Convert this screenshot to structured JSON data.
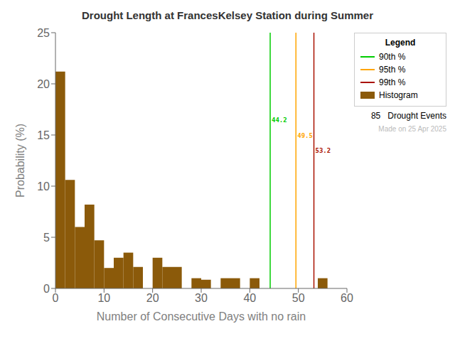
{
  "chart_data": {
    "type": "histogram",
    "title": "Drought Length at FrancesKelsey Station during Summer",
    "x_label": "Number of Consecutive Days with no rain",
    "y_label": "Probability (%)",
    "name": "Histogram",
    "color": "#8B5A0A",
    "bins": [
      0,
      2,
      4,
      6,
      8,
      10,
      12,
      14,
      16,
      18,
      20,
      22,
      24,
      26,
      28,
      30,
      32,
      34,
      36,
      38,
      40,
      42,
      44,
      46,
      48,
      50,
      52,
      54,
      56,
      58,
      60
    ],
    "values": [
      21.2,
      10.6,
      6.0,
      8.2,
      4.7,
      2.0,
      3.0,
      3.5,
      2.1,
      0.0,
      3.0,
      2.1,
      2.1,
      0.0,
      1.0,
      0.85,
      0.0,
      1.0,
      1.0,
      0.0,
      1.0,
      0.0,
      0.0,
      0.0,
      0.0,
      0.0,
      0.0,
      1.0,
      0.0,
      0.0
    ],
    "xlim": [
      0,
      60
    ],
    "ylim": [
      0,
      25
    ],
    "xticks": [
      0,
      10,
      20,
      30,
      40,
      50,
      60
    ],
    "yticks": [
      0,
      5,
      10,
      15,
      20,
      25
    ],
    "grid": false,
    "legend": "upper right",
    "legend_title": "Legend",
    "lines": [
      {
        "name": "90th %",
        "x": 44.2,
        "label": "44.2",
        "color": "#00CC00"
      },
      {
        "name": "95th %",
        "x": 49.5,
        "label": "49.5",
        "color": "#FFA500"
      },
      {
        "name": "99th %",
        "x": 53.2,
        "label": "53.2",
        "color": "#AA1100"
      }
    ],
    "annotations": [
      {
        "text": "85   Drought Events",
        "color": "#000000"
      },
      {
        "text": "Made on 25 Apr 2025",
        "color": "#BBBBBB"
      }
    ]
  }
}
